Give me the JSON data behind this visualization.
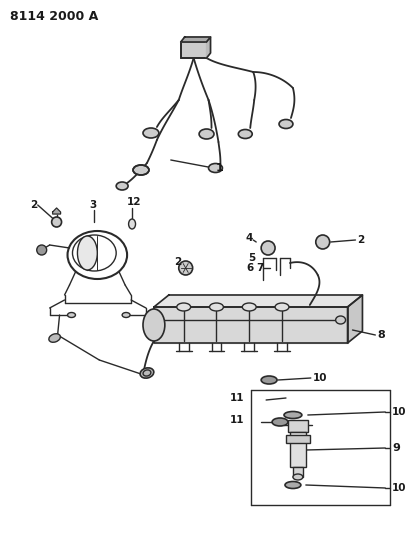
{
  "title": "8114 2000 A",
  "background_color": "#ffffff",
  "line_color": "#2a2a2a",
  "text_color": "#1a1a1a",
  "fig_width": 4.1,
  "fig_height": 5.33,
  "dpi": 100
}
